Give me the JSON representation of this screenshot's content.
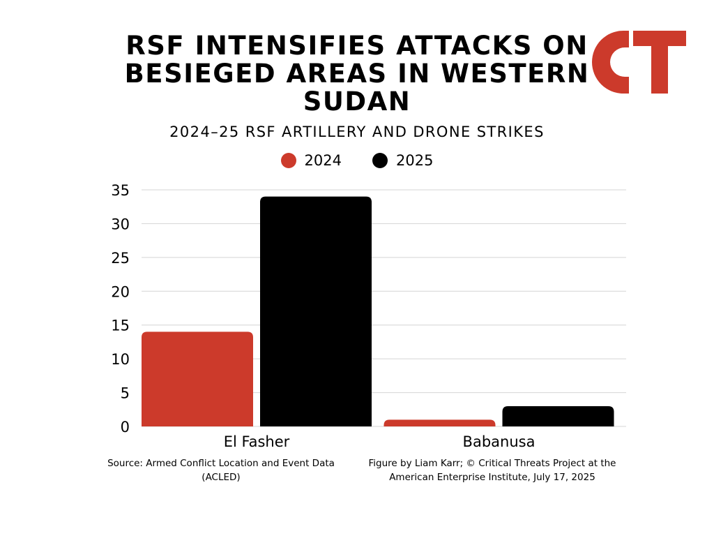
{
  "title": "RSF INTENSIFIES ATTACKS ON BESIEGED AREAS IN WESTERN SUDAN",
  "subtitle": "2024–25 RSF ARTILLERY AND DRONE STRIKES",
  "logo": {
    "text": "CT",
    "color": "#cc3a2b"
  },
  "colors": {
    "2024": "#cc3a2b",
    "2025": "#000000",
    "grid": "#d4d4d4"
  },
  "chart_data": {
    "type": "bar",
    "categories": [
      "El Fasher",
      "Babanusa"
    ],
    "series": [
      {
        "name": "2024",
        "values": [
          14,
          1
        ]
      },
      {
        "name": "2025",
        "values": [
          34,
          3
        ]
      }
    ],
    "title": "RSF INTENSIFIES ATTACKS ON BESIEGED AREAS IN WESTERN SUDAN",
    "subtitle": "2024–25 RSF ARTILLERY AND DRONE STRIKES",
    "xlabel": "",
    "ylabel": "",
    "ylim": [
      0,
      35
    ],
    "yticks": [
      0,
      5,
      10,
      15,
      20,
      25,
      30,
      35
    ],
    "grid": true,
    "legend": "top-center"
  },
  "footer": {
    "source": "Source: Armed Conflict Location and Event Data (ACLED)",
    "credit": "Figure by Liam Karr; © Critical Threats Project at the American Enterprise Institute, July 17, 2025"
  }
}
